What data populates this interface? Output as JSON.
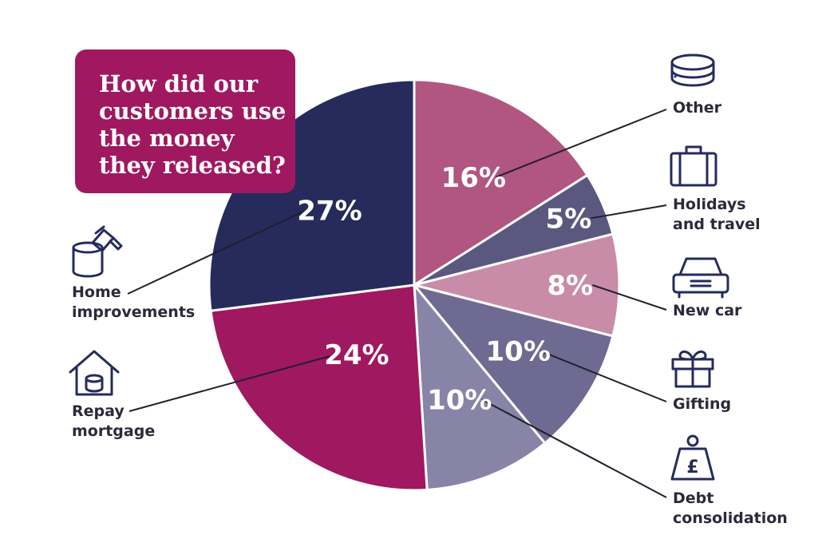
{
  "chart_data": {
    "type": "pie",
    "title": "How did our customers use the money they released?",
    "title_lines": [
      "How did our",
      "customers use",
      "the money",
      "they released?"
    ],
    "slices": [
      {
        "label": "Other",
        "label_lines": [
          "Other"
        ],
        "value": 16,
        "display": "16%",
        "color": "#b05681",
        "icon": "coins-icon"
      },
      {
        "label": "Holidays and travel",
        "label_lines": [
          "Holidays",
          "and travel"
        ],
        "value": 5,
        "display": "5%",
        "color": "#5a587f",
        "icon": "suitcase-icon"
      },
      {
        "label": "New car",
        "label_lines": [
          "New car"
        ],
        "value": 8,
        "display": "8%",
        "color": "#c98ca8",
        "icon": "car-icon"
      },
      {
        "label": "Gifting",
        "label_lines": [
          "Gifting"
        ],
        "value": 10,
        "display": "10%",
        "color": "#6e6a92",
        "icon": "gift-icon"
      },
      {
        "label": "Debt consolidation",
        "label_lines": [
          "Debt",
          "consolidation"
        ],
        "value": 10,
        "display": "10%",
        "color": "#8884a8",
        "icon": "pound-weight-icon"
      },
      {
        "label": "Repay mortgage",
        "label_lines": [
          "Repay",
          "mortgage"
        ],
        "value": 24,
        "display": "24%",
        "color": "#a0185f",
        "icon": "house-coins-icon"
      },
      {
        "label": "Home improvements",
        "label_lines": [
          "Home",
          "improvements"
        ],
        "value": 27,
        "display": "27%",
        "color": "#262b5b",
        "icon": "paint-bucket-icon"
      }
    ]
  }
}
